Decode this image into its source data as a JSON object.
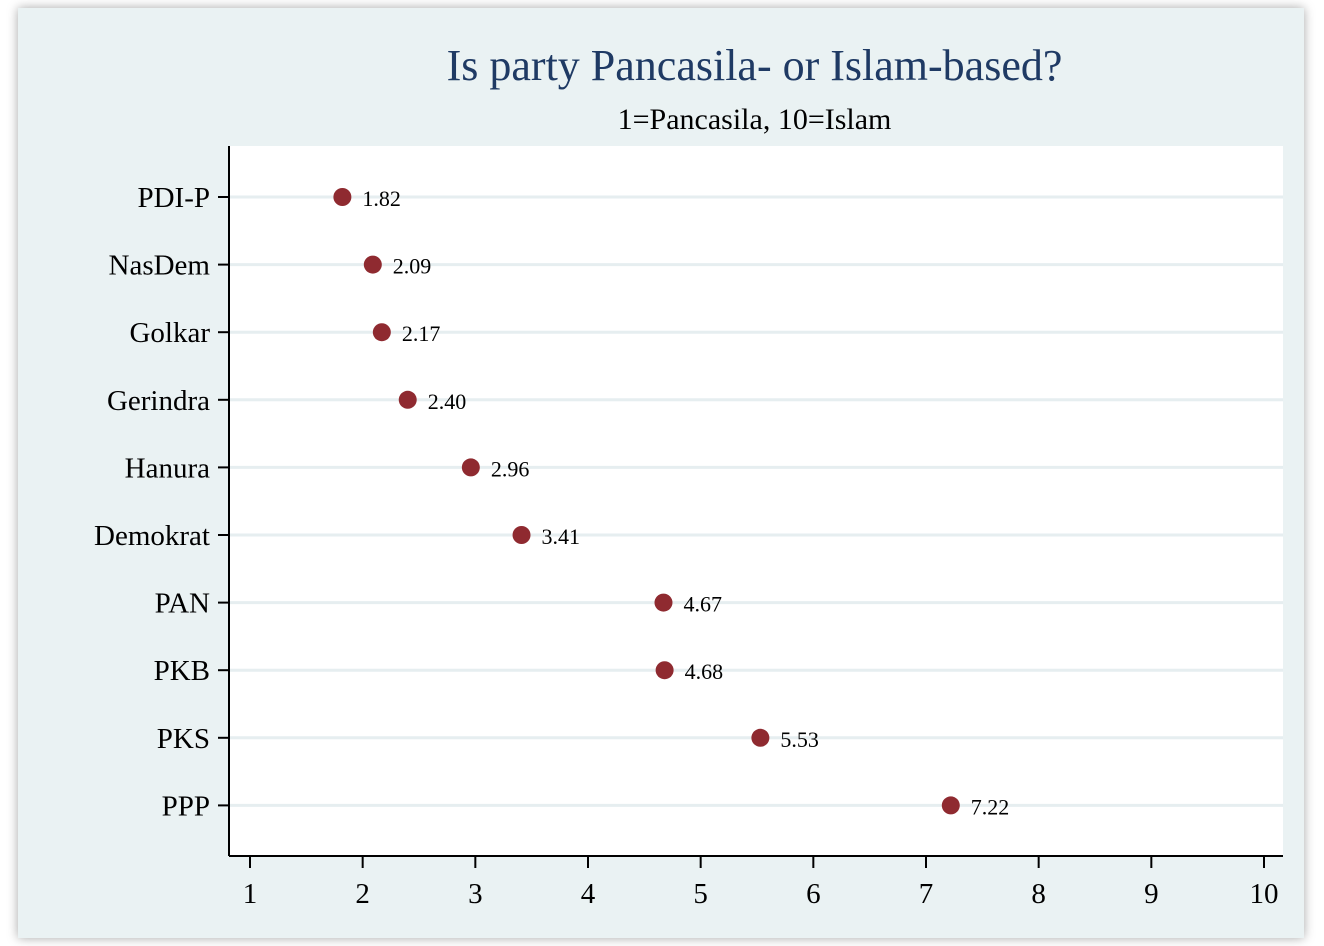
{
  "chart_data": {
    "type": "scatter",
    "title": "Is party Pancasila- or Islam-based?",
    "subtitle": "1=Pancasila, 10=Islam",
    "xlabel": "",
    "ylabel": "",
    "xlim": [
      1,
      10
    ],
    "xticks": [
      1,
      2,
      3,
      4,
      5,
      6,
      7,
      8,
      9,
      10
    ],
    "categories": [
      "PDI-P",
      "NasDem",
      "Golkar",
      "Gerindra",
      "Hanura",
      "Demokrat",
      "PAN",
      "PKB",
      "PKS",
      "PPP"
    ],
    "values": [
      1.82,
      2.09,
      2.17,
      2.4,
      2.96,
      3.41,
      4.67,
      4.68,
      5.53,
      7.22
    ],
    "value_labels": [
      "1.82",
      "2.09",
      "2.17",
      "2.40",
      "2.96",
      "3.41",
      "4.67",
      "4.68",
      "5.53",
      "7.22"
    ],
    "grid": "horizontal",
    "marker_color": "#8f2a30",
    "title_color": "#1f3a64",
    "background_color": "#eaf2f3",
    "plot_background_color": "#ffffff",
    "grid_color": "#e6eef0"
  }
}
